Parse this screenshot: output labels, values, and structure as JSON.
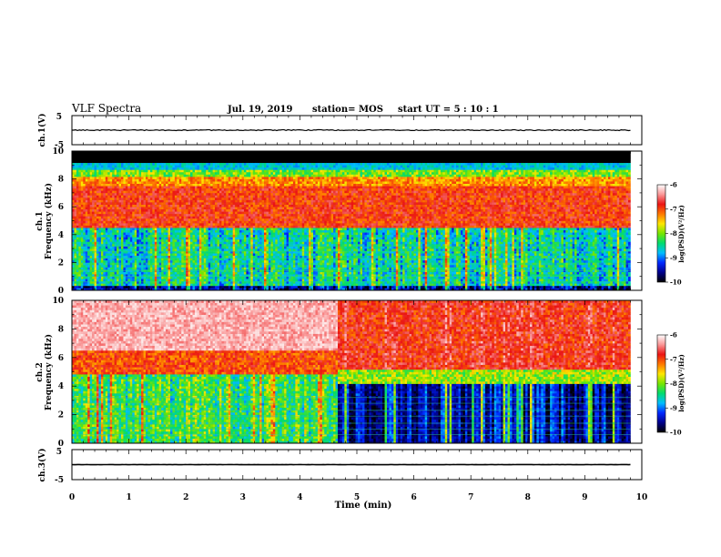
{
  "header": {
    "title": "VLF Spectra",
    "date": "Jul. 19, 2019",
    "station": "station= MOS",
    "start": "start  UT =   5 : 10 : 1"
  },
  "colors": {
    "background": "#ffffff",
    "axis": "#000000",
    "spectrum_background": "#000000"
  },
  "chart_data": [
    {
      "type": "line",
      "panel": "ch1-waveform",
      "ylabel": "ch.1(V)",
      "ylim": [
        -5,
        5
      ],
      "yticks": [
        "5",
        "-5"
      ],
      "x": [
        0,
        9.8
      ],
      "y": [
        0,
        0
      ],
      "xlim": [
        0,
        10
      ]
    },
    {
      "type": "heatmap",
      "panel": "ch1-spectrogram",
      "ylabel": "ch.1 Frequency (kHz)",
      "ylim": [
        0,
        10
      ],
      "yticks": [
        "0",
        "2",
        "4",
        "6",
        "8",
        "10"
      ],
      "xlim": [
        0,
        10
      ],
      "data_end_min": 9.8,
      "colorbar": {
        "label": "log(PSD)(V²/Hz)",
        "ticks": [
          "-6",
          "-7",
          "-8",
          "-9",
          "-10"
        ],
        "range": [
          -10,
          -6
        ]
      }
    },
    {
      "type": "heatmap",
      "panel": "ch2-spectrogram",
      "ylabel": "ch.2 Frequency (kHz)",
      "ylim": [
        0,
        10
      ],
      "yticks": [
        "0",
        "2",
        "4",
        "6",
        "8",
        "10"
      ],
      "xlim": [
        0,
        10
      ],
      "data_end_min": 9.8,
      "colorbar": {
        "label": "log(PSD)(V²/Hz)",
        "ticks": [
          "-6",
          "-7",
          "-8",
          "-9",
          "-10"
        ],
        "range": [
          -10,
          -6
        ]
      }
    },
    {
      "type": "line",
      "panel": "ch3-waveform",
      "ylabel": "ch.3(V)",
      "ylim": [
        -5,
        5
      ],
      "yticks": [
        "5",
        "-5"
      ],
      "x": [
        0,
        9.8
      ],
      "y": [
        0,
        0
      ],
      "xlim": [
        0,
        10
      ]
    }
  ],
  "xaxis": {
    "label": "Time (min)",
    "ticks": [
      "0",
      "1",
      "2",
      "3",
      "4",
      "5",
      "6",
      "7",
      "8",
      "9",
      "10"
    ]
  }
}
